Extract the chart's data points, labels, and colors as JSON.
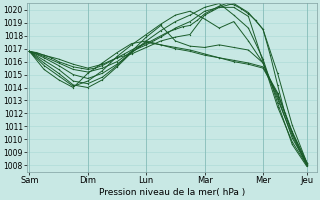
{
  "background_color": "#c8e8e4",
  "grid_color": "#a8d8d4",
  "line_color": "#1a5c2a",
  "xlabel": "Pression niveau de la mer( hPa )",
  "ylim": [
    1007.5,
    1020.5
  ],
  "yticks": [
    1008,
    1009,
    1010,
    1011,
    1012,
    1013,
    1014,
    1015,
    1016,
    1017,
    1018,
    1019,
    1020
  ],
  "xtick_labels": [
    "Sam",
    "Dim",
    "Lun",
    "Mar",
    "Mer",
    "Jeu"
  ],
  "xtick_positions": [
    0,
    24,
    48,
    72,
    96,
    114
  ],
  "xlim": [
    -1,
    118
  ],
  "lines": [
    [
      0,
      1016.8,
      3,
      1016.7,
      6,
      1016.5,
      9,
      1016.3,
      12,
      1016.0,
      15,
      1015.8,
      18,
      1015.6,
      21,
      1015.5,
      24,
      1015.4,
      27,
      1015.5,
      30,
      1015.7,
      33,
      1016.0,
      36,
      1016.3,
      39,
      1016.6,
      42,
      1016.9,
      45,
      1017.2,
      48,
      1017.4,
      51,
      1017.7,
      54,
      1018.0,
      57,
      1018.3,
      60,
      1018.5,
      63,
      1018.7,
      66,
      1018.8,
      69,
      1019.2,
      72,
      1019.7,
      75,
      1020.0,
      78,
      1020.3,
      81,
      1020.5,
      84,
      1020.4,
      87,
      1020.1,
      90,
      1019.7,
      93,
      1019.2,
      96,
      1018.5,
      99,
      1016.5,
      102,
      1014.2,
      105,
      1012.0,
      108,
      1010.5,
      111,
      1009.2,
      114,
      1008.1
    ],
    [
      0,
      1016.8,
      6,
      1016.4,
      12,
      1015.9,
      18,
      1015.4,
      24,
      1015.2,
      30,
      1015.5,
      36,
      1016.0,
      42,
      1016.8,
      48,
      1017.3,
      54,
      1017.9,
      60,
      1018.6,
      66,
      1019.1,
      72,
      1019.9,
      78,
      1020.2,
      84,
      1020.2,
      90,
      1019.5,
      96,
      1016.0,
      102,
      1012.5,
      108,
      1009.8,
      114,
      1008.0
    ],
    [
      0,
      1016.8,
      6,
      1016.3,
      12,
      1015.7,
      18,
      1015.0,
      24,
      1014.7,
      30,
      1015.1,
      36,
      1015.8,
      42,
      1016.7,
      48,
      1017.6,
      54,
      1018.4,
      60,
      1019.1,
      66,
      1019.6,
      72,
      1020.2,
      78,
      1020.5,
      84,
      1019.6,
      90,
      1018.6,
      96,
      1016.2,
      102,
      1012.8,
      108,
      1009.6,
      114,
      1007.9
    ],
    [
      0,
      1016.8,
      6,
      1016.1,
      12,
      1015.4,
      18,
      1014.5,
      24,
      1014.3,
      30,
      1014.8,
      36,
      1015.7,
      42,
      1016.8,
      48,
      1017.9,
      54,
      1018.8,
      60,
      1017.6,
      66,
      1017.2,
      72,
      1017.1,
      78,
      1017.3,
      84,
      1017.1,
      90,
      1016.9,
      96,
      1015.9,
      102,
      1013.3,
      108,
      1010.1,
      114,
      1008.1
    ],
    [
      0,
      1016.8,
      6,
      1015.9,
      12,
      1015.1,
      18,
      1014.2,
      24,
      1014.0,
      30,
      1014.6,
      36,
      1015.6,
      42,
      1016.7,
      48,
      1017.5,
      54,
      1017.3,
      60,
      1017.1,
      66,
      1016.9,
      72,
      1016.6,
      78,
      1016.3,
      84,
      1016.1,
      90,
      1015.9,
      96,
      1015.6,
      102,
      1013.6,
      108,
      1010.6,
      114,
      1008.2
    ],
    [
      0,
      1016.8,
      6,
      1015.7,
      12,
      1014.9,
      18,
      1014.1,
      24,
      1014.5,
      30,
      1015.3,
      36,
      1016.4,
      42,
      1017.3,
      48,
      1018.1,
      54,
      1018.9,
      60,
      1019.6,
      66,
      1019.9,
      72,
      1019.3,
      78,
      1018.6,
      84,
      1019.1,
      90,
      1017.6,
      96,
      1015.9,
      102,
      1013.1,
      108,
      1010.3,
      114,
      1008.0
    ],
    [
      0,
      1016.8,
      6,
      1015.4,
      12,
      1014.6,
      18,
      1014.0,
      24,
      1015.1,
      30,
      1015.9,
      36,
      1016.7,
      42,
      1017.4,
      48,
      1017.6,
      54,
      1017.3,
      60,
      1017.0,
      66,
      1016.8,
      72,
      1016.5,
      78,
      1016.3,
      84,
      1016.0,
      90,
      1015.8,
      96,
      1015.5,
      102,
      1013.5,
      108,
      1010.5,
      114,
      1008.2
    ],
    [
      0,
      1016.8,
      6,
      1016.5,
      12,
      1016.2,
      18,
      1015.8,
      24,
      1015.5,
      30,
      1015.8,
      36,
      1016.3,
      42,
      1016.6,
      48,
      1017.1,
      54,
      1017.6,
      60,
      1017.9,
      66,
      1018.1,
      72,
      1019.6,
      78,
      1020.2,
      84,
      1020.5,
      90,
      1019.8,
      96,
      1018.5,
      102,
      1015.1,
      108,
      1011.1,
      114,
      1008.2
    ]
  ]
}
